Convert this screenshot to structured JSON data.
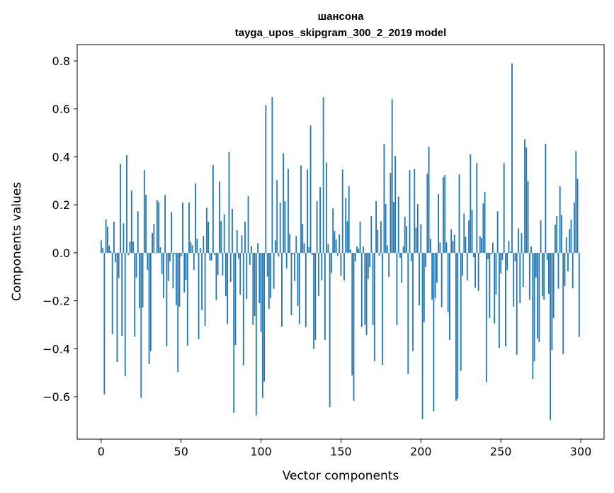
{
  "chart_data": {
    "type": "bar",
    "title": [
      "шансона",
      "tayga_upos_skipgram_300_2_2019 model"
    ],
    "xlabel": "Vector components",
    "ylabel": "Components values",
    "xlim": [
      -15,
      314.6
    ],
    "ylim": [
      -0.777,
      0.868
    ],
    "xticks": [
      0,
      50,
      100,
      150,
      200,
      250,
      300
    ],
    "xtick_labels": [
      "0",
      "50",
      "100",
      "150",
      "200",
      "250",
      "300"
    ],
    "yticks": [
      -0.6,
      -0.4,
      -0.2,
      0.0,
      0.2,
      0.4,
      0.6,
      0.8
    ],
    "ytick_labels": [
      "−0.6",
      "−0.4",
      "−0.2",
      "0.0",
      "0.2",
      "0.4",
      "0.6",
      "0.8"
    ],
    "grid": false,
    "color": "#1f77b4",
    "values": [
      0.052,
      0.02,
      -0.59,
      0.14,
      0.108,
      0.03,
      0.008,
      -0.34,
      0.13,
      -0.04,
      -0.455,
      -0.106,
      0.371,
      -0.346,
      0.123,
      -0.514,
      0.407,
      -0.01,
      0.046,
      0.26,
      0.046,
      -0.35,
      -0.103,
      0.173,
      -0.231,
      -0.605,
      -0.228,
      0.345,
      0.242,
      -0.071,
      -0.464,
      -0.41,
      0.082,
      0.12,
      -0.003,
      0.22,
      0.212,
      0.023,
      -0.088,
      -0.189,
      0.241,
      -0.39,
      -0.118,
      -0.035,
      0.17,
      -0.148,
      -0.005,
      -0.218,
      -0.497,
      -0.224,
      -0.015,
      0.21,
      -0.165,
      -0.112,
      -0.387,
      0.21,
      0.044,
      0.032,
      -0.071,
      0.289,
      0.059,
      -0.36,
      0.02,
      -0.239,
      0.07,
      -0.304,
      0.188,
      0.129,
      -0.032,
      -0.032,
      0.366,
      -0.009,
      -0.198,
      -0.092,
      0.297,
      0.132,
      -0.095,
      0.161,
      -0.18,
      -0.297,
      0.419,
      -0.121,
      0.183,
      -0.667,
      -0.384,
      0.094,
      -0.024,
      -0.174,
      0.073,
      -0.469,
      0.13,
      -0.192,
      0.236,
      -0.05,
      0.029,
      -0.301,
      -0.263,
      -0.678,
      0.04,
      -0.21,
      -0.33,
      -0.605,
      -0.537,
      0.616,
      -0.1,
      -0.233,
      -0.189,
      0.649,
      -0.15,
      0.052,
      0.303,
      -0.015,
      0.209,
      -0.307,
      0.415,
      0.215,
      -0.065,
      0.35,
      0.079,
      -0.26,
      -0.006,
      -0.118,
      0.07,
      -0.221,
      -0.298,
      0.365,
      0.12,
      0.04,
      -0.31,
      0.347,
      0.023,
      0.531,
      -0.009,
      -0.401,
      -0.363,
      0.215,
      -0.18,
      0.274,
      -0.115,
      0.649,
      -0.363,
      0.377,
      0.037,
      -0.644,
      -0.083,
      0.185,
      0.091,
      0.055,
      -0.012,
      0.076,
      -0.097,
      0.347,
      -0.115,
      0.229,
      0.132,
      0.277,
      0.014,
      -0.511,
      -0.617,
      -0.035,
      0.026,
      0.017,
      0.129,
      -0.31,
      0.026,
      -0.301,
      -0.343,
      -0.109,
      -0.059,
      0.153,
      -0.301,
      -0.452,
      0.215,
      0.096,
      -0.012,
      0.132,
      -0.467,
      0.454,
      0.203,
      0.031,
      -0.1,
      0.333,
      0.64,
      0.212,
      0.404,
      -0.301,
      0.235,
      -0.021,
      -0.124,
      0.026,
      0.15,
      0.111,
      -0.505,
      0.345,
      -0.035,
      -0.41,
      0.35,
      0.105,
      0.203,
      -0.219,
      0.12,
      -0.694,
      -0.289,
      -0.059,
      0.33,
      0.442,
      0.059,
      -0.195,
      -0.661,
      -0.189,
      -0.124,
      0.244,
      0.043,
      -0.227,
      0.315,
      0.324,
      0.043,
      -0.248,
      -0.363,
      0.099,
      0.049,
      0.076,
      -0.617,
      -0.608,
      0.327,
      -0.493,
      -0.095,
      0.164,
      0.067,
      -0.115,
      0.135,
      0.41,
      0.179,
      -0.018,
      -0.145,
      0.374,
      -0.159,
      0.07,
      0.061,
      0.206,
      0.253,
      -0.54,
      -0.027,
      -0.272,
      -0.006,
      0.043,
      -0.295,
      -0.174,
      0.173,
      -0.396,
      -0.086,
      -0.03,
      0.374,
      -0.39,
      -0.071,
      0.049,
      0.005,
      0.79,
      -0.224,
      -0.035,
      -0.425,
      0.102,
      -0.21,
      0.082,
      -0.142,
      0.474,
      0.439,
      0.3,
      -0.195,
      0.026,
      -0.526,
      -0.452,
      -0.103,
      -0.357,
      -0.372,
      0.135,
      -0.18,
      -0.195,
      0.454,
      -0.03,
      -0.171,
      -0.697,
      -0.405,
      -0.272,
      0.117,
      0.153,
      -0.15,
      0.277,
      0.158,
      -0.422,
      -0.139,
      0.064,
      -0.077,
      0.099,
      0.138,
      -0.148,
      0.209,
      0.424,
      0.309,
      -0.351
    ]
  }
}
